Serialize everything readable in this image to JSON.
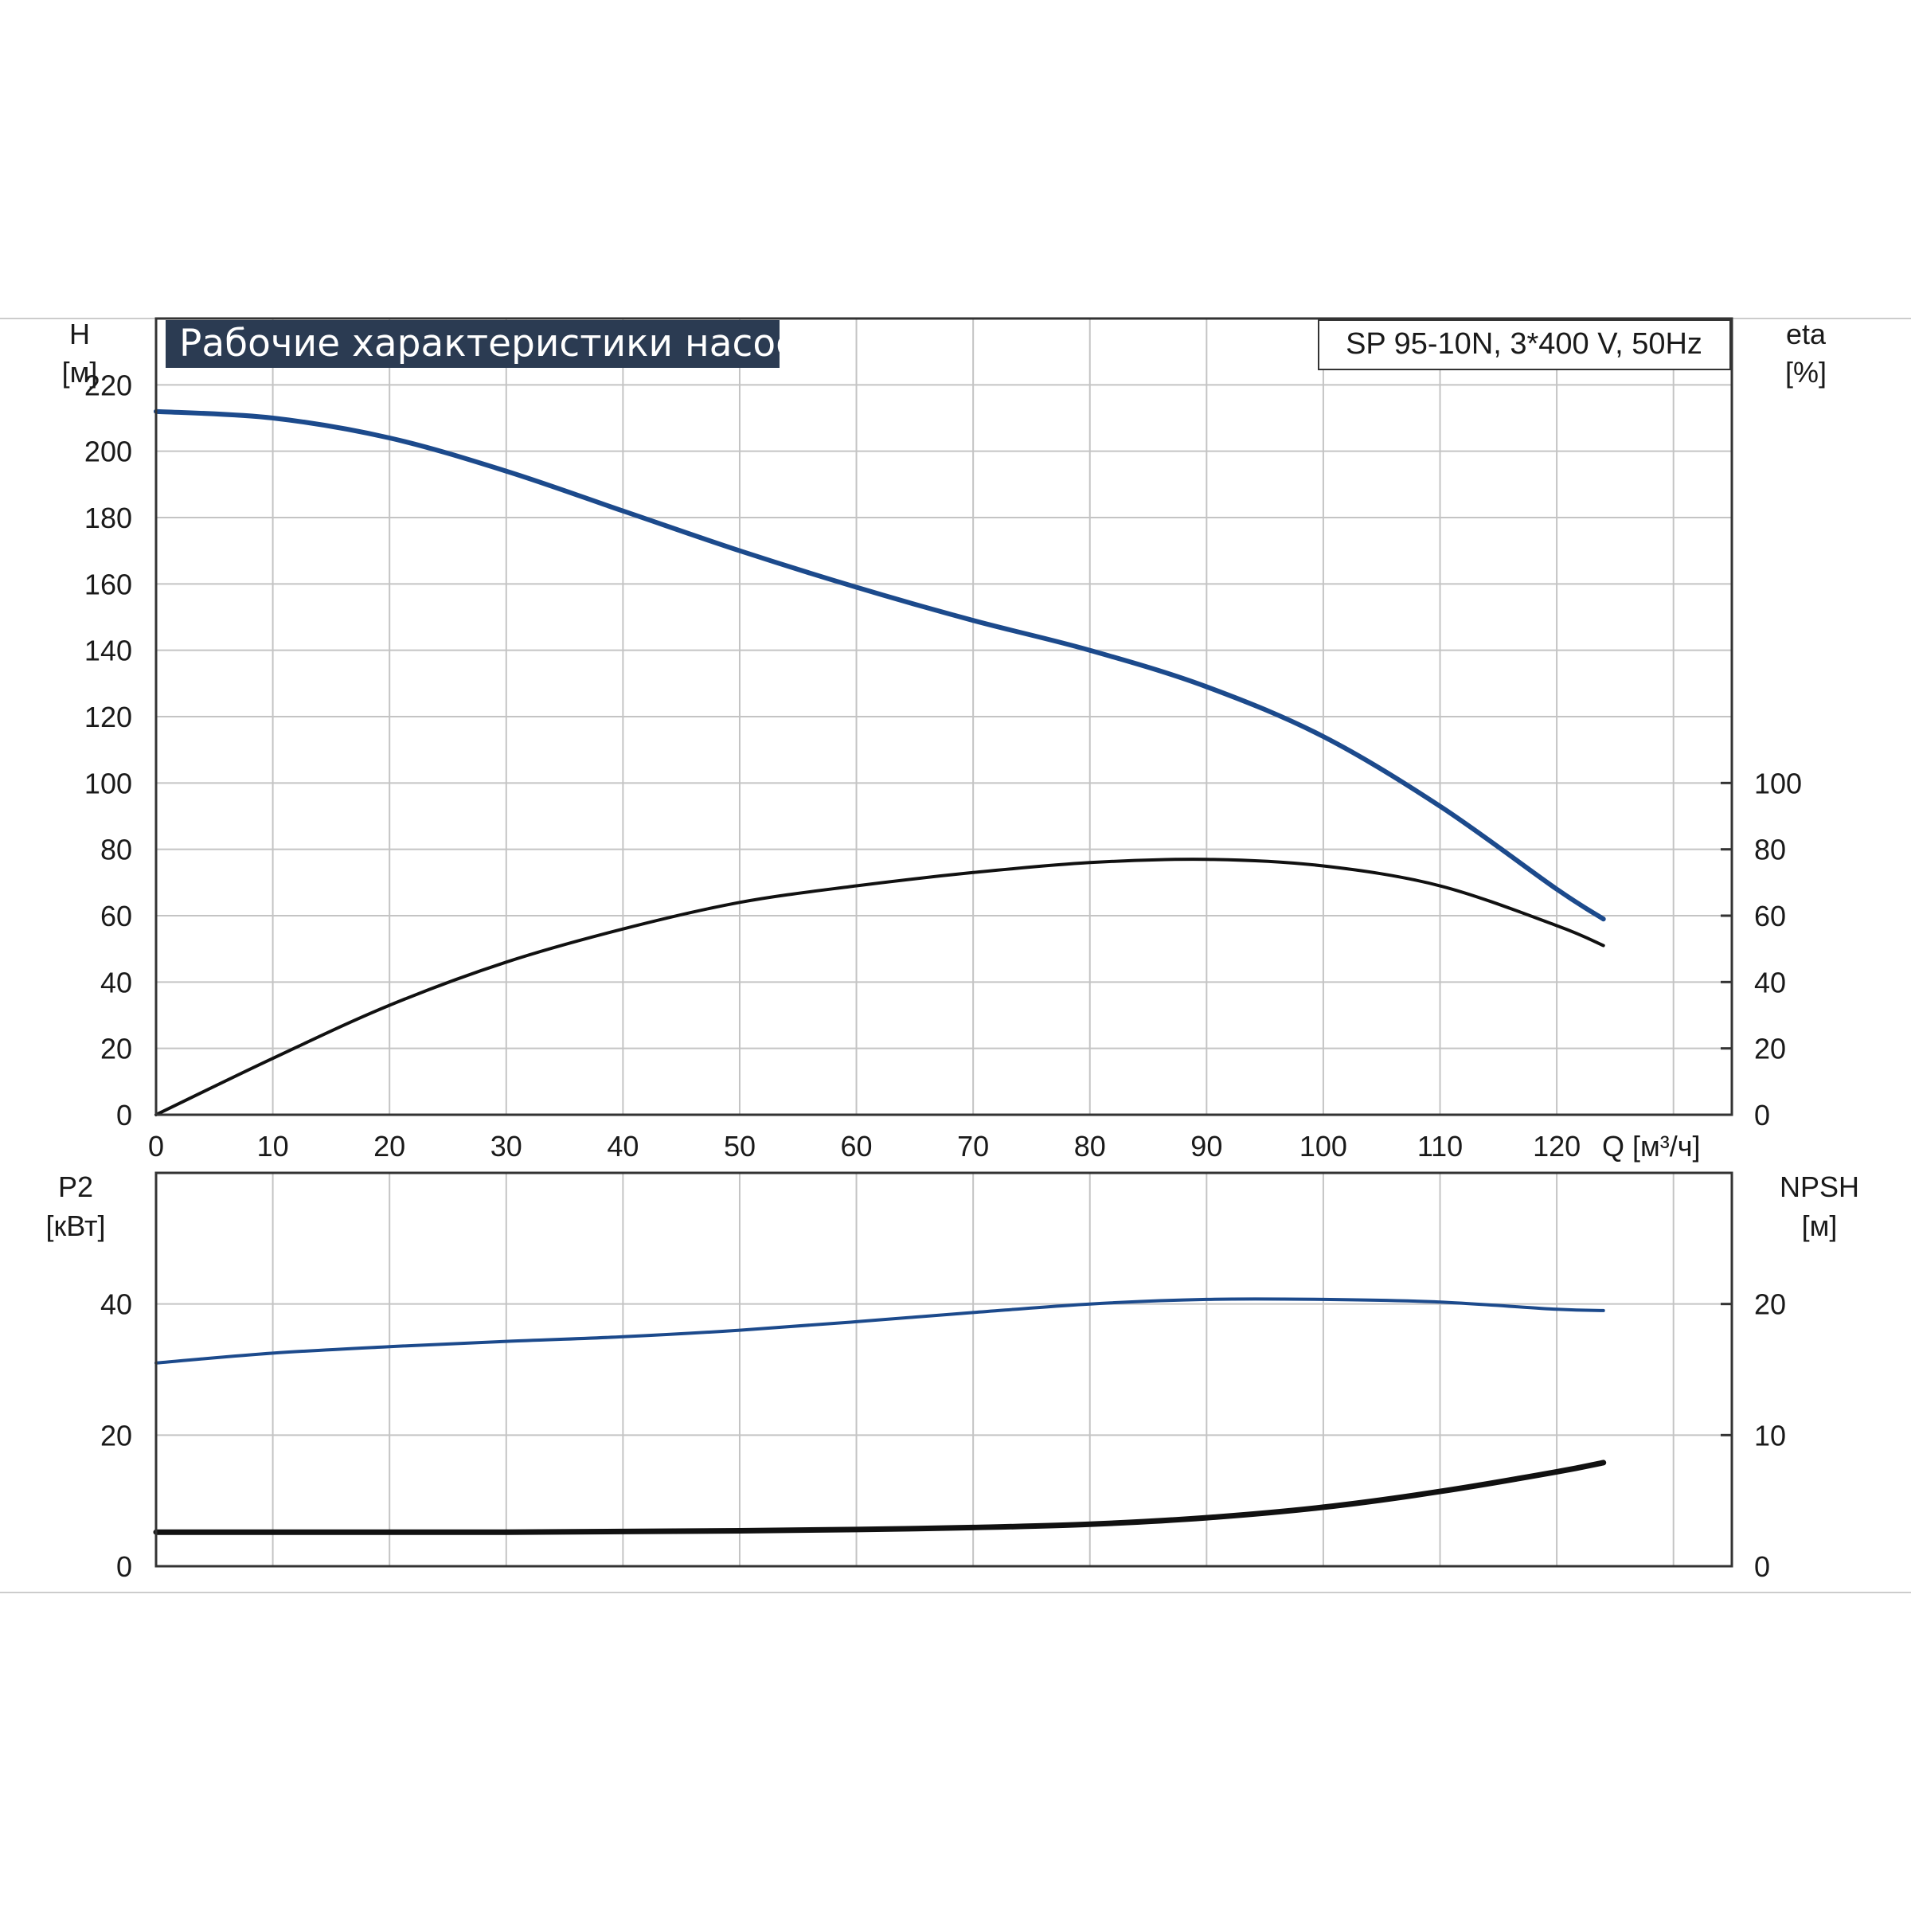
{
  "chart_data": [
    {
      "type": "line",
      "title": "Рабочие характеристики насоса",
      "model": "SP 95-10N, 3*400 V, 50Hz",
      "xlabel": "Q [м³/ч]",
      "xlim": [
        0,
        135
      ],
      "x_ticks": [
        "0",
        "10",
        "20",
        "30",
        "40",
        "50",
        "60",
        "70",
        "80",
        "90",
        "100",
        "110",
        "120"
      ],
      "ylabel_left": {
        "symbol": "H",
        "unit": "[м]"
      },
      "ylim_left": [
        0,
        240
      ],
      "y_ticks_left": [
        "0",
        "20",
        "40",
        "60",
        "80",
        "100",
        "120",
        "140",
        "160",
        "180",
        "200",
        "220"
      ],
      "ylabel_right": {
        "symbol": "eta",
        "unit": "[%]"
      },
      "ylim_right": [
        0,
        240
      ],
      "y_ticks_right": [
        "0",
        "20",
        "40",
        "60",
        "80",
        "100"
      ],
      "grid": true,
      "colors": {
        "head": "#1c4a8c",
        "efficiency": "#111111"
      },
      "series": [
        {
          "axis": "left",
          "x": [
            0,
            10,
            20,
            30,
            40,
            50,
            60,
            70,
            80,
            90,
            100,
            110,
            120,
            124
          ],
          "y": [
            212,
            210,
            204,
            194,
            182,
            170,
            159,
            149,
            140,
            129,
            114,
            93,
            68,
            59
          ]
        },
        {
          "axis": "right",
          "x": [
            0,
            10,
            20,
            30,
            40,
            50,
            60,
            70,
            80,
            90,
            100,
            110,
            120,
            124
          ],
          "y": [
            0,
            17,
            33,
            46,
            56,
            64,
            69,
            73,
            76,
            77,
            75,
            69,
            57,
            51
          ]
        }
      ]
    },
    {
      "type": "line",
      "xlim": [
        0,
        135
      ],
      "ylabel_left": {
        "symbol": "P2",
        "unit": "[кВт]"
      },
      "ylim_left": [
        0,
        60
      ],
      "y_ticks_left": [
        "0",
        "20",
        "40"
      ],
      "ylabel_right": {
        "symbol": "NPSH",
        "unit": "[м]"
      },
      "ylim_right": [
        0,
        30
      ],
      "y_ticks_right": [
        "0",
        "10",
        "20"
      ],
      "grid": true,
      "colors": {
        "power": "#1c4a8c",
        "npsh": "#111111"
      },
      "series": [
        {
          "axis": "left",
          "x": [
            0,
            10,
            20,
            30,
            40,
            50,
            60,
            70,
            80,
            90,
            100,
            110,
            120,
            124
          ],
          "y": [
            31.0,
            32.5,
            33.5,
            34.3,
            35.0,
            36.0,
            37.3,
            38.7,
            40.0,
            40.7,
            40.7,
            40.3,
            39.2,
            39.0
          ]
        },
        {
          "axis": "right",
          "x": [
            0,
            10,
            20,
            30,
            40,
            50,
            60,
            70,
            80,
            90,
            100,
            110,
            120,
            124
          ],
          "y": [
            2.6,
            2.6,
            2.6,
            2.6,
            2.65,
            2.7,
            2.8,
            2.95,
            3.2,
            3.7,
            4.5,
            5.7,
            7.2,
            7.9
          ]
        }
      ]
    }
  ]
}
